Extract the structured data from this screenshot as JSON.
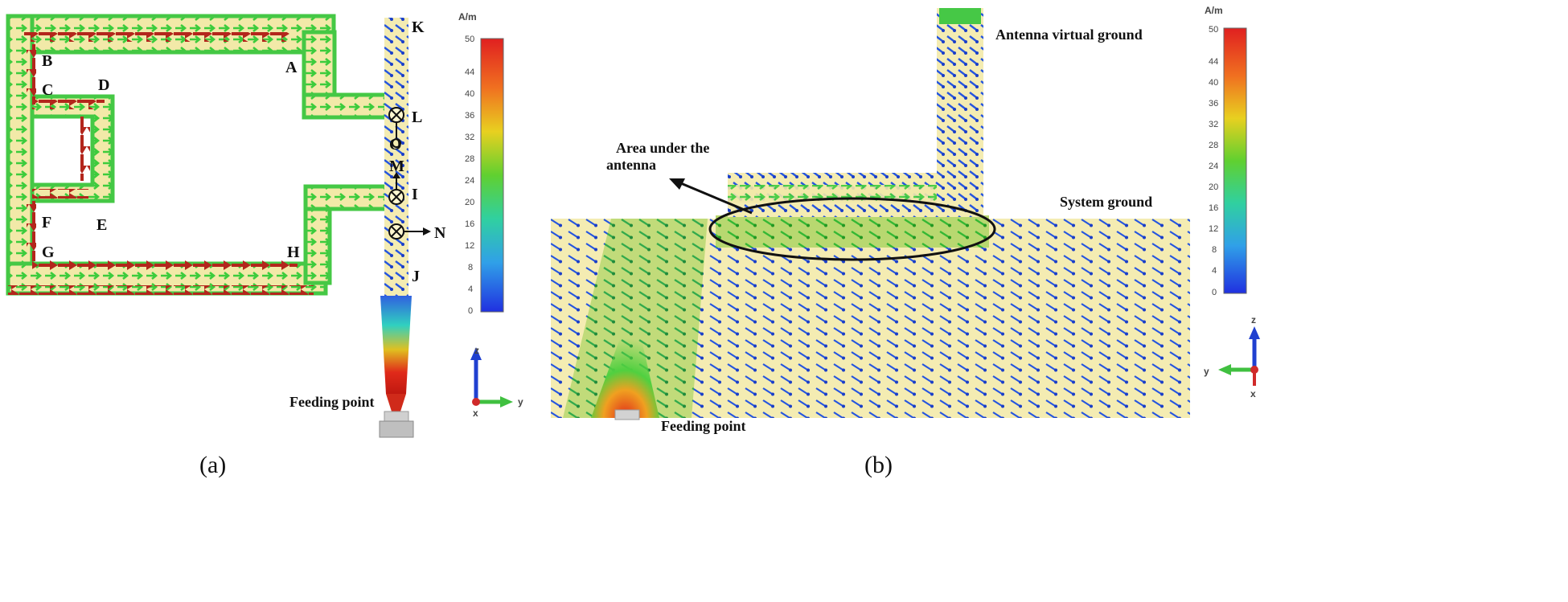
{
  "panel_a": {
    "points": [
      "A",
      "B",
      "C",
      "D",
      "E",
      "F",
      "G",
      "H",
      "I",
      "J",
      "K",
      "L",
      "M",
      "N",
      "O"
    ],
    "feeding_label": "Feeding point",
    "caption": "(a)"
  },
  "panel_b": {
    "antenna_virtual_ground": "Antenna virtual ground",
    "area_line1": "Area under the",
    "area_line2": "antenna",
    "system_ground": "System ground",
    "feeding_label": "Feeding point",
    "caption": "(b)"
  },
  "colorbar": {
    "unit": "A/m",
    "ticks": [
      "50",
      "44",
      "40",
      "36",
      "32",
      "28",
      "24",
      "20",
      "16",
      "12",
      "8",
      "4",
      "0"
    ]
  },
  "axes": {
    "z": "z",
    "y": "y",
    "x": "x"
  },
  "colors": {
    "high": "#c0241a",
    "mid": "#3ecf3e",
    "low": "#2050e0",
    "substrate": "#f7efb4"
  }
}
